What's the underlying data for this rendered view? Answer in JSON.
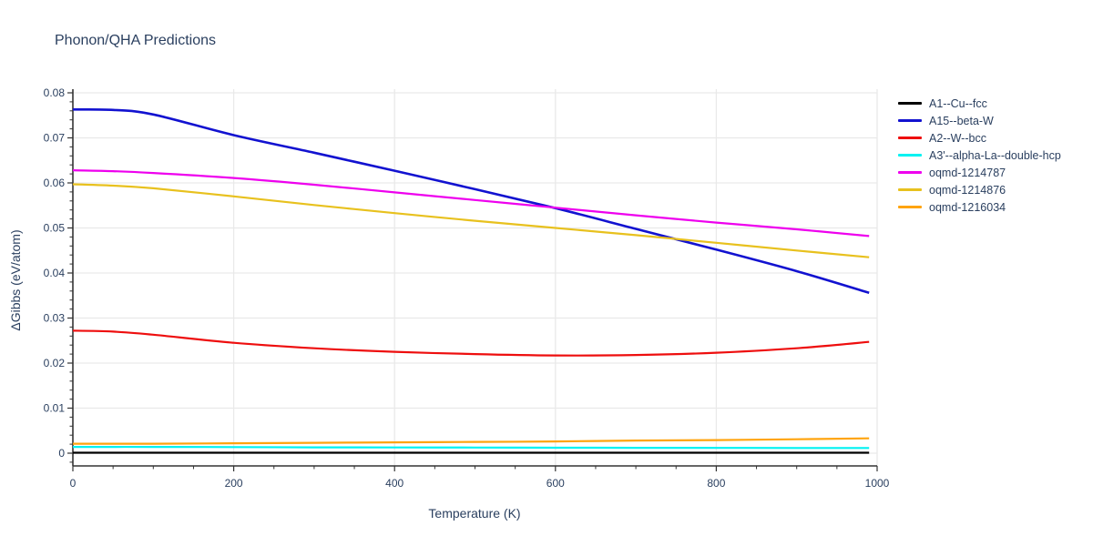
{
  "title": "Phonon/QHA Predictions",
  "colors": {
    "text": "#2a3f5f",
    "grid": "#e9e9e9",
    "axis": "#333333",
    "background": "#ffffff"
  },
  "chart_data": {
    "type": "line",
    "title": "Phonon/QHA Predictions",
    "xlabel": "Temperature (K)",
    "ylabel": "ΔGibbs (eV/atom)",
    "xlim": [
      0,
      1000
    ],
    "ylim": [
      -0.003,
      0.0808
    ],
    "grid": true,
    "legend_position": "right",
    "x_tick_labels": [
      "0",
      "200",
      "400",
      "600",
      "800",
      "1000"
    ],
    "x_tick_values": [
      0,
      200,
      400,
      600,
      800,
      1000
    ],
    "x_minor_step": 50,
    "y_tick_labels": [
      "0",
      "0.01",
      "0.02",
      "0.03",
      "0.04",
      "0.05",
      "0.06",
      "0.07",
      "0.08"
    ],
    "y_tick_values": [
      0,
      0.01,
      0.02,
      0.03,
      0.04,
      0.05,
      0.06,
      0.07,
      0.08
    ],
    "y_minor_step": 0.002,
    "x": [
      0,
      50,
      100,
      200,
      300,
      400,
      500,
      600,
      700,
      800,
      900,
      990
    ],
    "series": [
      {
        "name": "A1--Cu--fcc",
        "color": "#000000",
        "values": [
          0.0001,
          0.0001,
          0.0001,
          0.0001,
          0.0001,
          0.0001,
          0.0001,
          0.0001,
          0.0001,
          0.0001,
          0.0001,
          0.0001
        ]
      },
      {
        "name": "A15--beta-W",
        "color": "#1212d0",
        "values": [
          0.0763,
          0.0762,
          0.0752,
          0.0706,
          0.0667,
          0.0627,
          0.0586,
          0.0544,
          0.0498,
          0.0452,
          0.0404,
          0.0356
        ]
      },
      {
        "name": "A2--W--bcc",
        "color": "#ee0e0e",
        "values": [
          0.0272,
          0.027,
          0.0263,
          0.0245,
          0.0233,
          0.0225,
          0.022,
          0.0217,
          0.0218,
          0.0223,
          0.0233,
          0.0247
        ]
      },
      {
        "name": "A3'--alpha-La--double-hcp",
        "color": "#00f2f2",
        "values": [
          0.0014,
          0.0014,
          0.0014,
          0.00135,
          0.0013,
          0.00128,
          0.00125,
          0.00122,
          0.0012,
          0.00118,
          0.00116,
          0.00115
        ]
      },
      {
        "name": "oqmd-1214787",
        "color": "#ee00ee",
        "values": [
          0.0628,
          0.0626,
          0.0622,
          0.0611,
          0.0596,
          0.0579,
          0.0562,
          0.0545,
          0.0528,
          0.0512,
          0.0497,
          0.0482
        ]
      },
      {
        "name": "oqmd-1214876",
        "color": "#e8c11e",
        "values": [
          0.0597,
          0.0594,
          0.0588,
          0.057,
          0.0551,
          0.0533,
          0.0516,
          0.05,
          0.0484,
          0.0467,
          0.045,
          0.0435
        ]
      },
      {
        "name": "oqmd-1216034",
        "color": "#ffa40e",
        "values": [
          0.0021,
          0.0021,
          0.0021,
          0.0022,
          0.0023,
          0.0024,
          0.0025,
          0.0026,
          0.0028,
          0.0029,
          0.0031,
          0.0033
        ]
      }
    ]
  }
}
